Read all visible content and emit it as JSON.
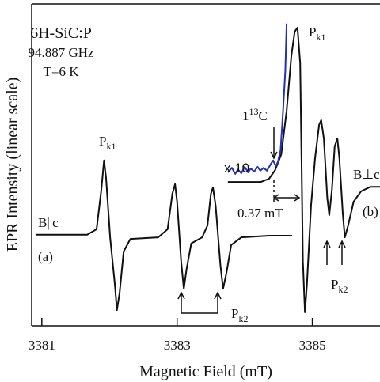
{
  "chart_data": {
    "type": "line",
    "x_label": "Magnetic Field (mT)",
    "y_label": "EPR Intensity (linear scale)",
    "sample_info": [
      "6H-SiC:P",
      "94.887 GHz",
      "T=6 K"
    ],
    "xlim": [
      3380.85,
      3386.0
    ],
    "ylim": [
      0,
      100
    ],
    "xticks": [
      3381,
      3383,
      3385
    ],
    "grid": false,
    "series": [
      {
        "color": "#111111",
        "x": [
          3380.91,
          3381.67,
          3381.81,
          3381.88,
          3381.92,
          3381.95,
          3382.01,
          3382.08,
          3382.11,
          3382.15,
          3382.21,
          3382.31,
          3382.72,
          3382.86,
          3382.93,
          3382.97,
          3383.0,
          3383.06,
          3383.1,
          3383.14,
          3383.21,
          3383.37,
          3383.45,
          3383.5,
          3383.53,
          3383.57,
          3383.64,
          3383.68,
          3383.73,
          3383.8,
          3383.95,
          3384.36,
          3384.7
        ],
        "values": [
          28.3,
          28.3,
          30.0,
          42.3,
          51.4,
          45.9,
          27.5,
          12.8,
          4.9,
          10.3,
          23.1,
          27.0,
          27.5,
          30.0,
          41.0,
          44.0,
          38.6,
          20.1,
          11.5,
          17.7,
          25.6,
          27.5,
          31.2,
          41.0,
          43.0,
          37.3,
          18.9,
          11.5,
          16.5,
          25.1,
          27.5,
          28.0,
          28.0
        ]
      },
      {
        "color": "#111111",
        "x": [
          3383.75,
          3384.24,
          3384.36,
          3384.45,
          3384.54,
          3384.62,
          3384.69,
          3384.74,
          3384.78,
          3384.82,
          3384.84,
          3384.86,
          3384.89,
          3384.92,
          3384.98,
          3385.04,
          3385.1,
          3385.13,
          3385.17,
          3385.22,
          3385.25,
          3385.29,
          3385.33,
          3385.37,
          3385.4,
          3385.45,
          3385.48,
          3385.53,
          3385.61,
          3385.72,
          3385.86,
          3386.0
        ],
        "values": [
          44.7,
          44.7,
          45.7,
          48.4,
          53.3,
          66.8,
          84.0,
          91.4,
          92.6,
          81.6,
          52.1,
          20.1,
          4.2,
          12.8,
          37.3,
          52.1,
          62.4,
          63.9,
          58.2,
          39.8,
          34.4,
          42.3,
          55.8,
          58.2,
          52.1,
          34.9,
          27.5,
          31.2,
          38.6,
          41.8,
          43.2,
          43.2
        ]
      },
      {
        "color": "#2230b8",
        "x": [
          3383.75,
          3383.81,
          3383.86,
          3383.9,
          3383.95,
          3384.0,
          3384.05,
          3384.09,
          3384.14,
          3384.19,
          3384.23,
          3384.28,
          3384.33,
          3384.38,
          3384.42,
          3384.46,
          3384.49,
          3384.53,
          3384.56,
          3384.6,
          3384.62
        ],
        "values": [
          47.7,
          49.1,
          47.2,
          48.6,
          47.4,
          49.4,
          47.7,
          48.9,
          47.9,
          49.4,
          48.2,
          49.1,
          48.2,
          50.1,
          51.4,
          49.6,
          50.9,
          54.5,
          64.4,
          79.1,
          93.9
        ]
      }
    ],
    "annotations": [
      [
        "P",
        "k1"
      ],
      [
        "P",
        "k1"
      ],
      [
        "P",
        "k2"
      ],
      [
        "P",
        "k2"
      ],
      [
        "1",
        "13",
        "C"
      ],
      [
        "x 10"
      ],
      [
        "B||c"
      ],
      [
        "(a)"
      ],
      [
        "B⊥c"
      ],
      [
        "(b)"
      ],
      [
        "0.37 mT"
      ]
    ]
  }
}
